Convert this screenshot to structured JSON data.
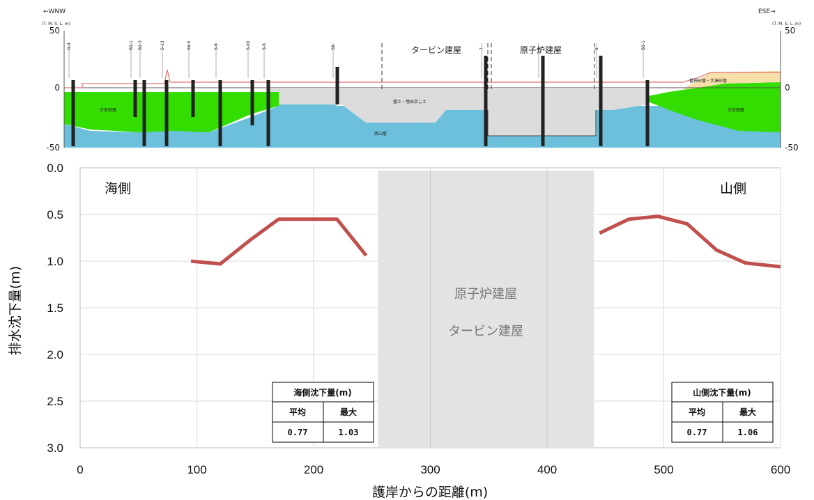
{
  "section": {
    "left_dir": "←WNW",
    "right_dir": "ESE→",
    "datum_unit": "(T. M. S. L. m)",
    "y_ticks": [
      "50",
      "0",
      "-50"
    ],
    "label_turbine": "タービン建屋",
    "label_reactor": "原子炉建屋",
    "label_fill": "盛土・埋め戻し土",
    "label_furuasuda_left": "古安田層",
    "label_furuasuda_right": "古安田層",
    "label_nishiyama": "西山層",
    "label_upper_right": "番神砂層・大湊砂層",
    "borehole_names": [
      "O-3",
      "B1-1",
      "B1-3",
      "S-13",
      "S5-5",
      "S-9",
      "S-20",
      "S-3",
      "S8",
      "7",
      "5",
      "8",
      "B1-1"
    ],
    "colors": {
      "furuasuda": "#33dd00",
      "nishiyama": "#6cc0dc",
      "fill": "#dcdcdc",
      "sand": "#f6dfa8"
    }
  },
  "chart_data": {
    "type": "line",
    "xlabel": "護岸からの距離(m)",
    "ylabel": "排水沈下量(m)",
    "xlim": [
      0,
      600
    ],
    "ylim": [
      0.0,
      3.0
    ],
    "y_inverted": true,
    "x_ticks": [
      0,
      100,
      200,
      300,
      400,
      500,
      600
    ],
    "y_ticks": [
      "0.0",
      "0.5",
      "1.0",
      "1.5",
      "2.0",
      "2.5",
      "3.0"
    ],
    "grid": true,
    "series": [
      {
        "x": [
          95,
          120,
          145,
          170,
          195,
          220,
          245
        ],
        "y": [
          1.0,
          1.03,
          0.78,
          0.55,
          0.55,
          0.55,
          0.94
        ],
        "color": "#c0504d"
      },
      {
        "x": [
          445,
          470,
          495,
          520,
          545,
          570,
          600
        ],
        "y": [
          0.7,
          0.55,
          0.52,
          0.6,
          0.88,
          1.02,
          1.06
        ],
        "color": "#c0504d"
      }
    ],
    "excluded_zone": {
      "x": [
        255,
        440
      ],
      "labels": [
        "原子炉建屋",
        "タービン建屋"
      ]
    },
    "annotations": {
      "sea_side": "海側",
      "mountain_side": "山側"
    },
    "tables": [
      {
        "title": "海側沈下量(m)",
        "headers": [
          "平均",
          "最大"
        ],
        "values": [
          "0.77",
          "1.03"
        ]
      },
      {
        "title": "山側沈下量(m)",
        "headers": [
          "平均",
          "最大"
        ],
        "values": [
          "0.77",
          "1.06"
        ]
      }
    ]
  }
}
